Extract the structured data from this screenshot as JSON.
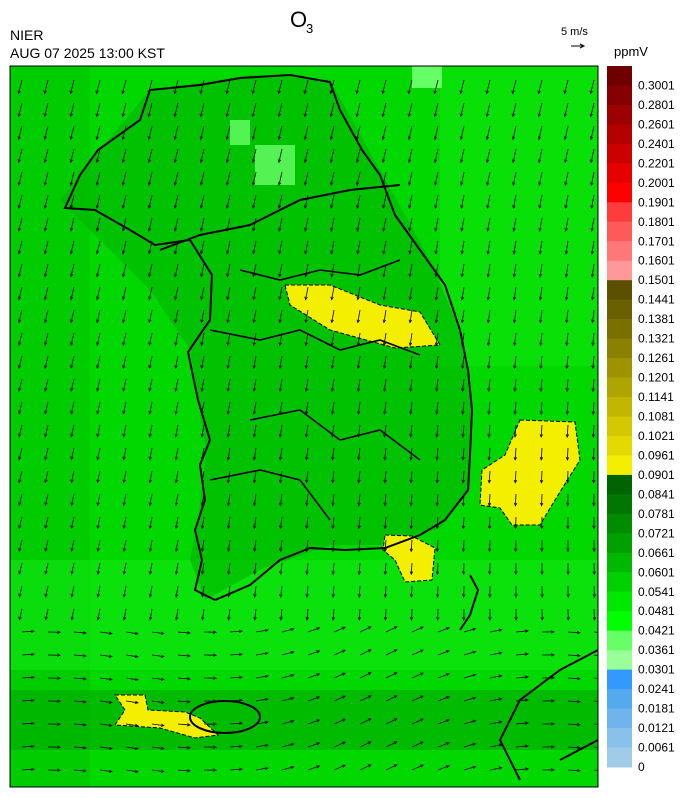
{
  "header": {
    "title": "O",
    "title_subscript": "3",
    "agency": "NIER",
    "datetime": "AUG 07 2025 13:00 KST",
    "wind_scale": "5 m/s"
  },
  "legend": {
    "unit": "ppmV",
    "items": [
      {
        "label": "0.3001",
        "color": "#6e0000"
      },
      {
        "label": "0.2801",
        "color": "#850000"
      },
      {
        "label": "0.2601",
        "color": "#9c0000"
      },
      {
        "label": "0.2401",
        "color": "#b30000"
      },
      {
        "label": "0.2201",
        "color": "#cc0000"
      },
      {
        "label": "0.2001",
        "color": "#e60000"
      },
      {
        "label": "0.1901",
        "color": "#ff0000"
      },
      {
        "label": "0.1801",
        "color": "#ff3c3c"
      },
      {
        "label": "0.1701",
        "color": "#ff5a5a"
      },
      {
        "label": "0.1601",
        "color": "#ff7878"
      },
      {
        "label": "0.1501",
        "color": "#ff9898"
      },
      {
        "label": "0.1441",
        "color": "#5a5000"
      },
      {
        "label": "0.1381",
        "color": "#6a6000"
      },
      {
        "label": "0.1321",
        "color": "#7a7000"
      },
      {
        "label": "0.1261",
        "color": "#8c8000"
      },
      {
        "label": "0.1201",
        "color": "#9e9200"
      },
      {
        "label": "0.1141",
        "color": "#b0a400"
      },
      {
        "label": "0.1081",
        "color": "#c2b600"
      },
      {
        "label": "0.1021",
        "color": "#d4c800"
      },
      {
        "label": "0.0961",
        "color": "#e4da00"
      },
      {
        "label": "0.0901",
        "color": "#f4ee00"
      },
      {
        "label": "0.0841",
        "color": "#006400"
      },
      {
        "label": "0.0781",
        "color": "#007800"
      },
      {
        "label": "0.0721",
        "color": "#008c00"
      },
      {
        "label": "0.0661",
        "color": "#00a000"
      },
      {
        "label": "0.0601",
        "color": "#00b800"
      },
      {
        "label": "0.0541",
        "color": "#00d000"
      },
      {
        "label": "0.0481",
        "color": "#00e800"
      },
      {
        "label": "0.0421",
        "color": "#00ff00"
      },
      {
        "label": "0.0361",
        "color": "#66ff66"
      },
      {
        "label": "0.0301",
        "color": "#99ff99"
      },
      {
        "label": "0.0241",
        "color": "#3399ff"
      },
      {
        "label": "0.0181",
        "color": "#55aaee"
      },
      {
        "label": "0.0121",
        "color": "#70b4ee"
      },
      {
        "label": "0.0061",
        "color": "#88c2ec"
      },
      {
        "label": "0",
        "color": "#a0cce8"
      }
    ]
  }
}
